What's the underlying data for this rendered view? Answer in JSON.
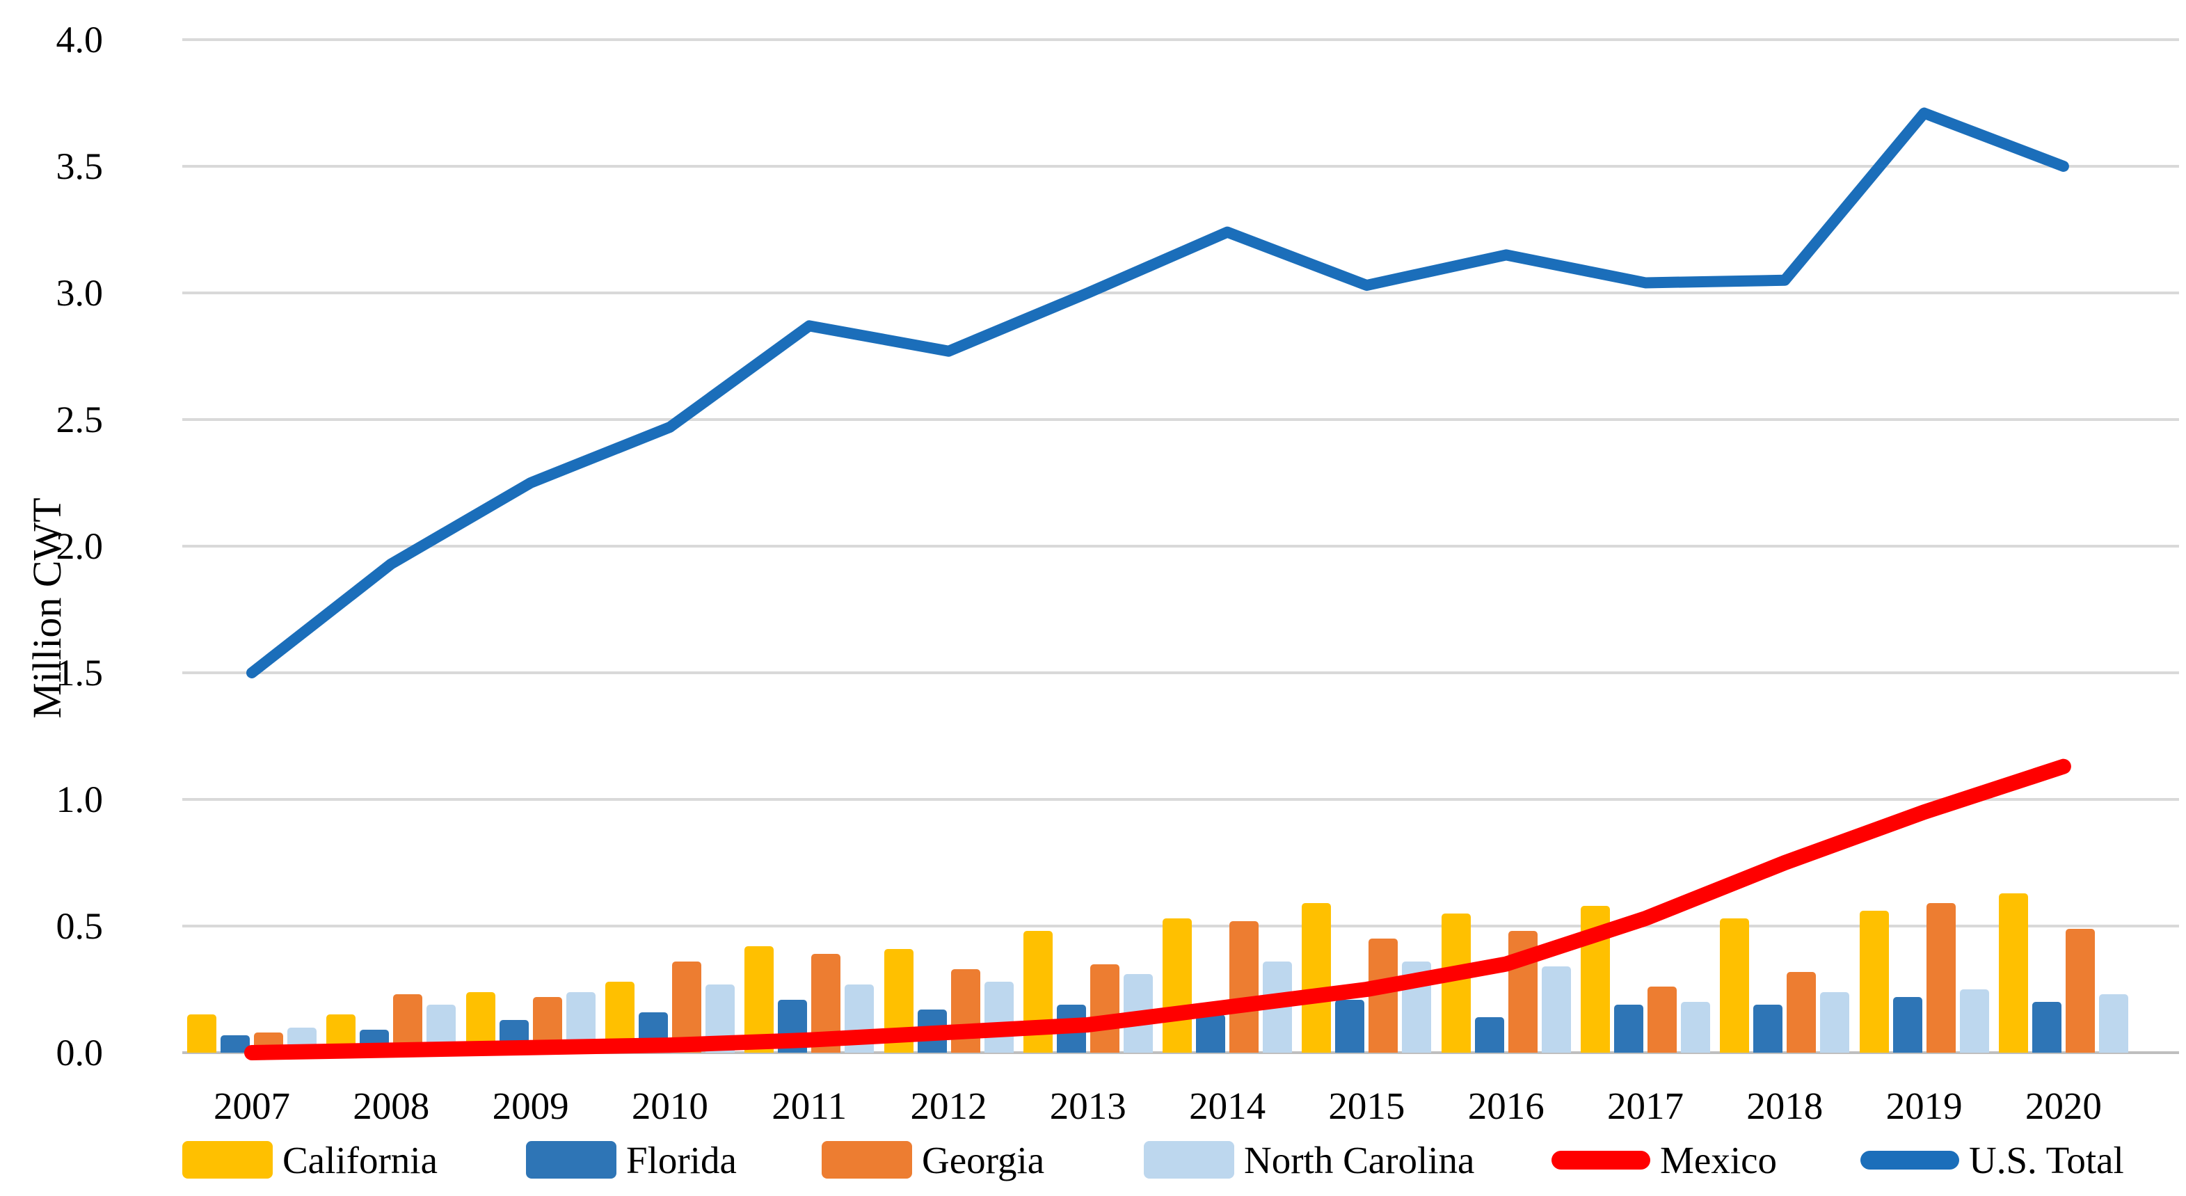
{
  "chart_data": {
    "type": "bar+line combo",
    "title": "",
    "ylabel": "Million CWT",
    "xlabel": "",
    "ylim": [
      0.0,
      4.0
    ],
    "grid": "horizontal gridlines on",
    "legend_position": "bottom",
    "categories": [
      "2007",
      "2008",
      "2009",
      "2010",
      "2011",
      "2012",
      "2013",
      "2014",
      "2015",
      "2016",
      "2017",
      "2018",
      "2019",
      "2020"
    ],
    "bar_series": [
      {
        "name": "California",
        "color": "#FFC000",
        "values": [
          0.15,
          0.15,
          0.24,
          0.28,
          0.42,
          0.41,
          0.48,
          0.53,
          0.59,
          0.55,
          0.58,
          0.53,
          0.56,
          0.63
        ]
      },
      {
        "name": "Florida",
        "color": "#2E75B6",
        "values": [
          0.07,
          0.09,
          0.13,
          0.16,
          0.21,
          0.17,
          0.19,
          0.15,
          0.21,
          0.14,
          0.19,
          0.19,
          0.22,
          0.2
        ]
      },
      {
        "name": "Georgia",
        "color": "#ED7D31",
        "values": [
          0.08,
          0.23,
          0.22,
          0.36,
          0.39,
          0.33,
          0.35,
          0.52,
          0.45,
          0.48,
          0.26,
          0.32,
          0.59,
          0.49
        ]
      },
      {
        "name": "North Carolina",
        "color": "#BDD7EE",
        "values": [
          0.1,
          0.19,
          0.24,
          0.27,
          0.27,
          0.28,
          0.31,
          0.36,
          0.36,
          0.34,
          0.2,
          0.24,
          0.25,
          0.23
        ]
      }
    ],
    "line_series": [
      {
        "name": "Mexico",
        "color": "#FF0000",
        "values": [
          0.0,
          0.01,
          0.02,
          0.03,
          0.05,
          0.08,
          0.11,
          0.18,
          0.25,
          0.35,
          0.53,
          0.75,
          0.95,
          1.13
        ]
      },
      {
        "name": "U.S. Total",
        "color": "#1B6EBA",
        "values": [
          1.5,
          1.93,
          2.25,
          2.47,
          2.87,
          2.77,
          3.0,
          3.24,
          3.03,
          3.15,
          3.04,
          3.05,
          3.71,
          3.5
        ]
      }
    ],
    "yticks": [
      {
        "value": 0.0,
        "label": "0.0"
      },
      {
        "value": 0.5,
        "label": "0.5"
      },
      {
        "value": 1.0,
        "label": "1.0"
      },
      {
        "value": 1.5,
        "label": "1.5"
      },
      {
        "value": 2.0,
        "label": "2.0"
      },
      {
        "value": 2.5,
        "label": "2.5"
      },
      {
        "value": 3.0,
        "label": "3.0"
      },
      {
        "value": 3.5,
        "label": "3.5"
      },
      {
        "value": 4.0,
        "label": "4.0"
      }
    ],
    "colors": {
      "gridline": "#D9D9D9",
      "axis_baseline": "#BFBFBF",
      "text": "#000000",
      "background": "#FFFFFF"
    }
  }
}
